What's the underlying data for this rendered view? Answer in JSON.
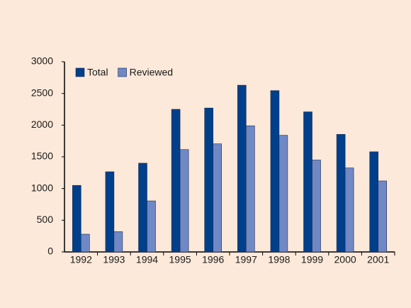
{
  "chart_data": {
    "type": "bar",
    "categories": [
      "1992",
      "1993",
      "1994",
      "1995",
      "1996",
      "1997",
      "1998",
      "1999",
      "2000",
      "2001"
    ],
    "series": [
      {
        "name": "Total",
        "color": "#003f8a",
        "values": [
          1050,
          1265,
          1400,
          2250,
          2270,
          2630,
          2545,
          2210,
          1855,
          1580
        ]
      },
      {
        "name": "Reviewed",
        "color": "#7088c4",
        "values": [
          280,
          320,
          805,
          1615,
          1705,
          1990,
          1840,
          1450,
          1325,
          1120
        ]
      }
    ],
    "ylim": [
      0,
      3000
    ],
    "yticks": [
      0,
      500,
      1000,
      1500,
      2000,
      2500,
      3000
    ],
    "grid": false,
    "legend": "top-left"
  }
}
